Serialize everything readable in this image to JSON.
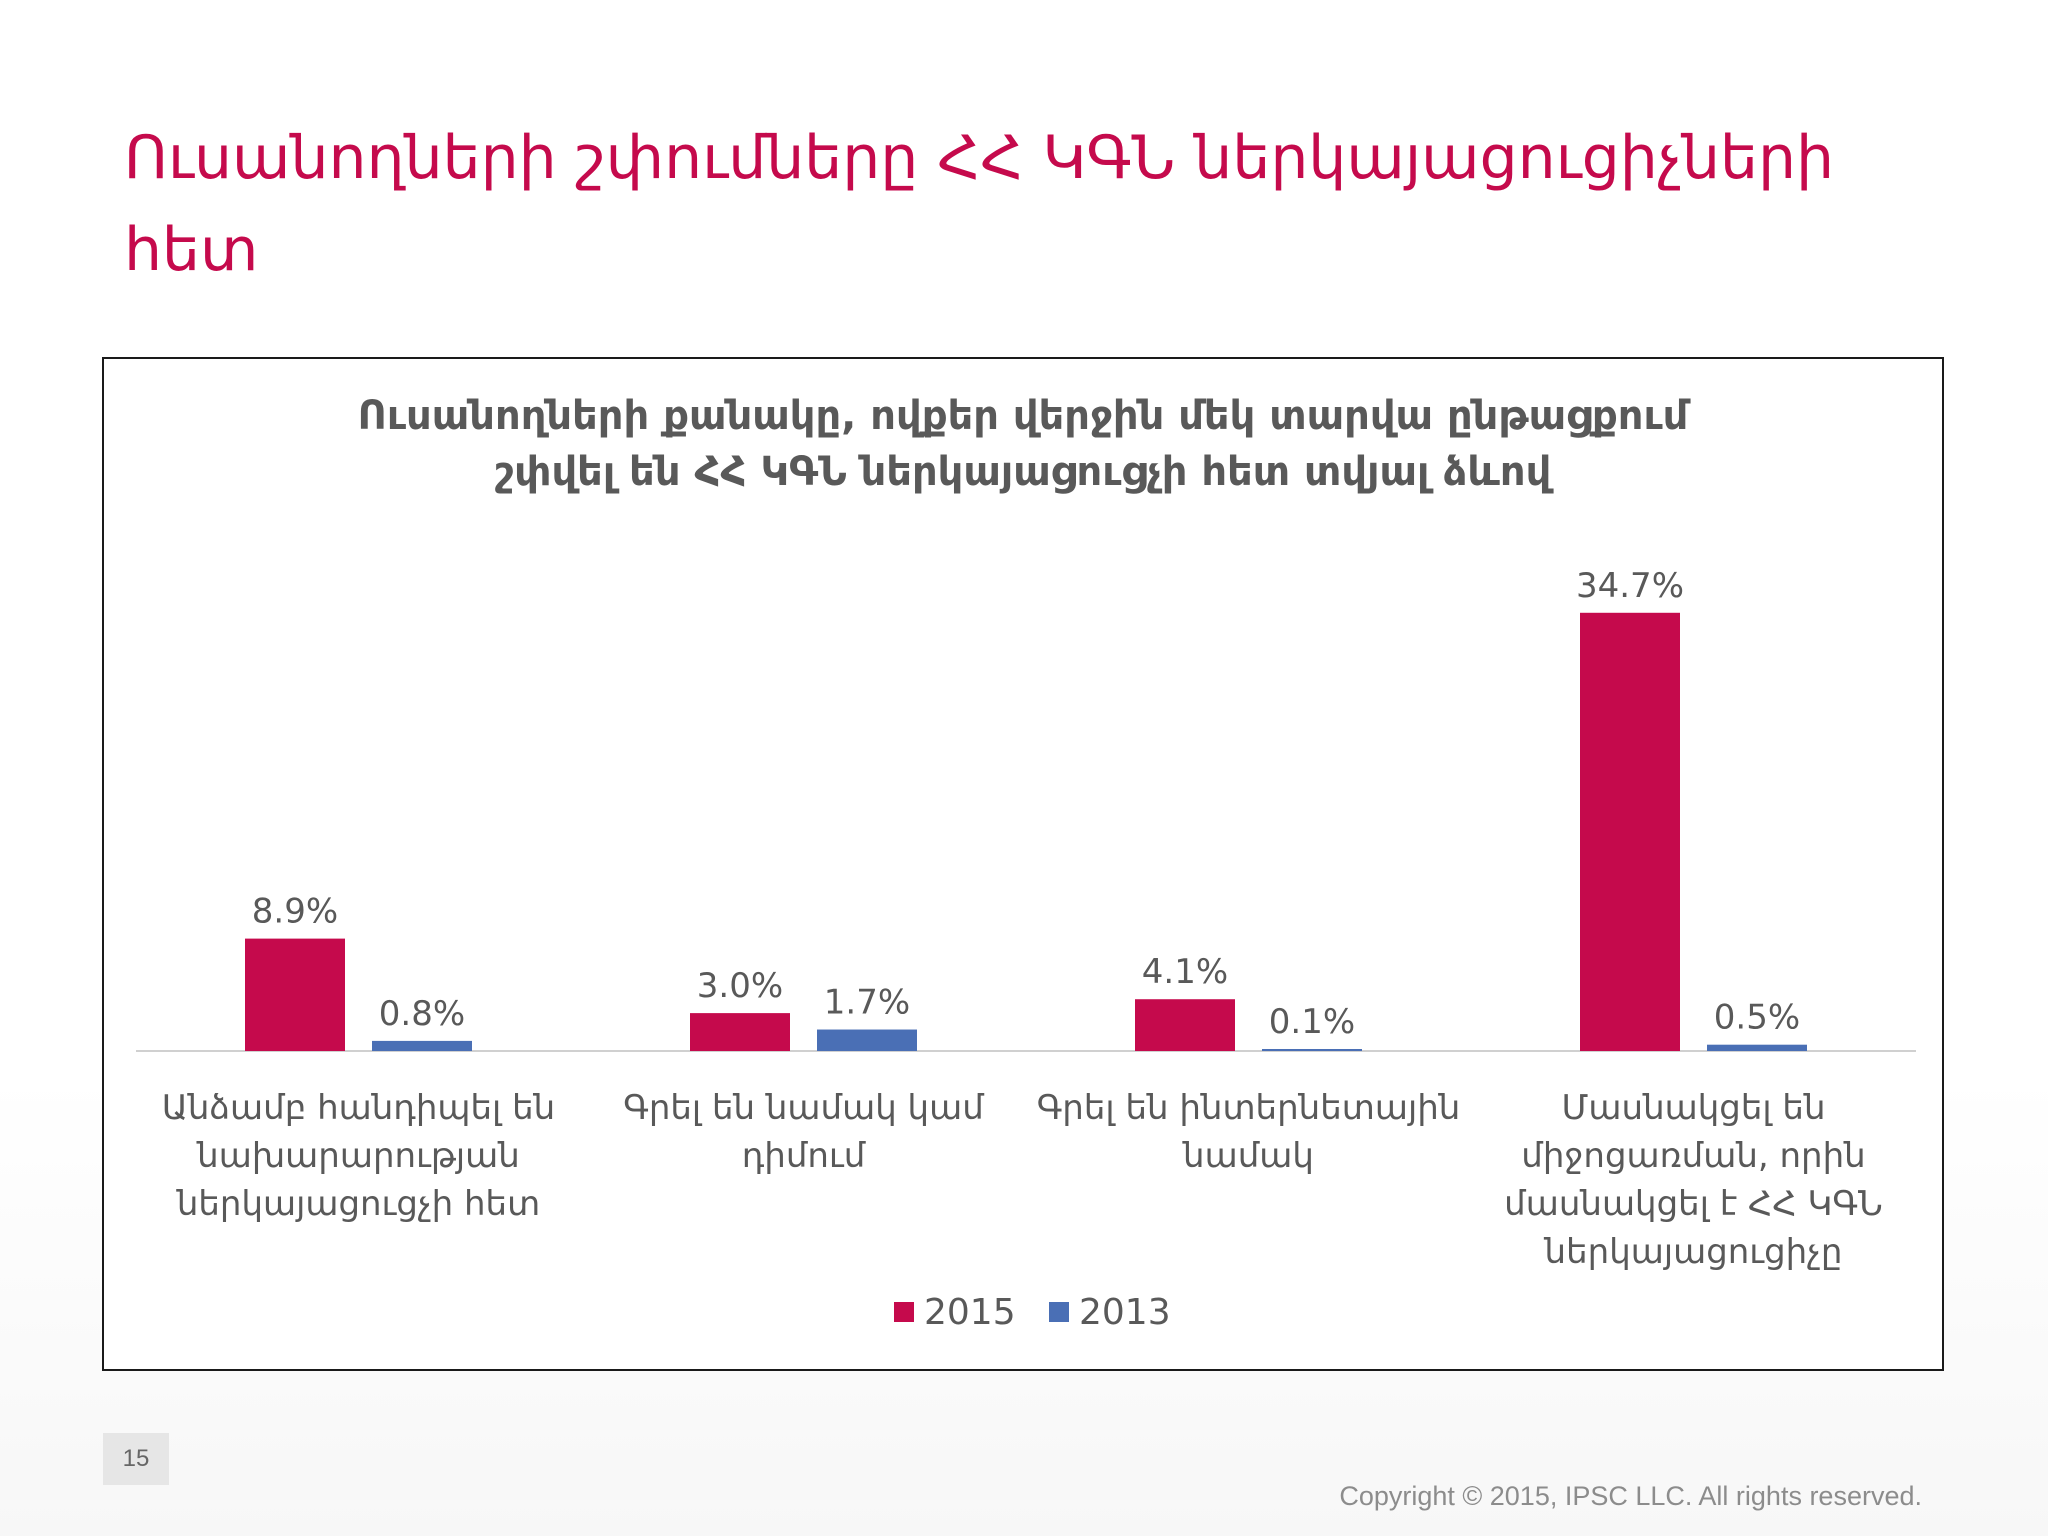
{
  "slide": {
    "title": "Ուսանողների շփումները ՀՀ ԿԳՆ ներկայացուցիչների հետ",
    "page_number": "15",
    "copyright": "Copyright © 2015, IPSC LLC. All rights reserved.",
    "accent_color": "#c50a4c"
  },
  "chart_data": {
    "type": "bar",
    "title_lines": [
      "Ուսանողների քանակը, ովքեր վերջին մեկ տարվա ընթացքում",
      "շփվել են ՀՀ ԿԳՆ ներկայացուցչի հետ տվյալ ձևով"
    ],
    "categories": [
      [
        "Անձամբ հանդիպել են",
        "նախարարության",
        "ներկայացուցչի հետ"
      ],
      [
        "Գրել են նամակ կամ",
        "դիմում"
      ],
      [
        "Գրել են ինտերնետային",
        "նամակ"
      ],
      [
        "Մասնակցել են",
        "միջոցառման, որին",
        "մասնակցել է ՀՀ ԿԳՆ",
        "ներկայացուցիչը"
      ]
    ],
    "series": [
      {
        "name": "2015",
        "color": "#c50a4c",
        "values": [
          8.9,
          3.0,
          4.1,
          34.7
        ],
        "labels": [
          "8.9%",
          "3.0%",
          "4.1%",
          "34.7%"
        ]
      },
      {
        "name": "2013",
        "color": "#4a6fb5",
        "values": [
          0.8,
          1.7,
          0.1,
          0.5
        ],
        "labels": [
          "0.8%",
          "1.7%",
          "0.1%",
          "0.5%"
        ]
      }
    ],
    "ylim": [
      0,
      35
    ],
    "grid": false,
    "legend_position": "bottom"
  }
}
